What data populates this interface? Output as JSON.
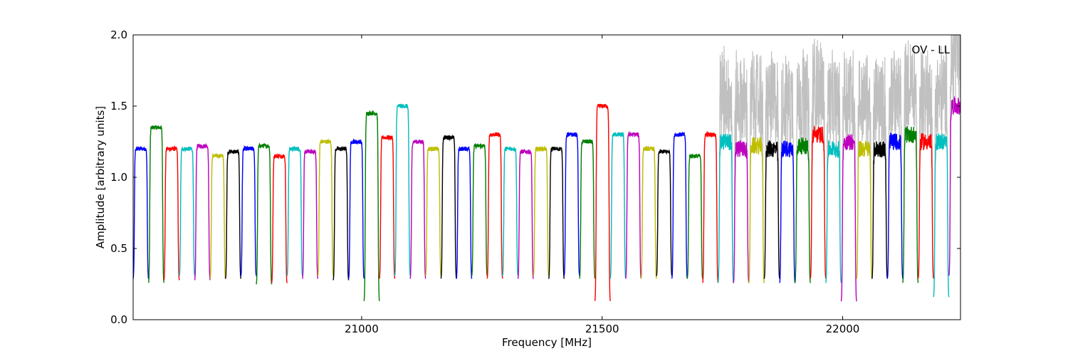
{
  "chart_data": {
    "type": "line",
    "annotation": "OV - LL",
    "xlabel": "Frequency [MHz]",
    "ylabel": "Amplitude [arbitrary units]",
    "xlim": [
      20525,
      22245
    ],
    "ylim": [
      0.0,
      2.0
    ],
    "xticks": [
      21000,
      21500,
      22000
    ],
    "xtick_labels": [
      "21000",
      "21500",
      "22000"
    ],
    "yticks": [
      0.0,
      0.5,
      1.0,
      1.5,
      2.0
    ],
    "ytick_labels": [
      "0.0",
      "0.5",
      "1.0",
      "1.5",
      "2.0"
    ],
    "grid": false,
    "legend": "none",
    "band_width_mhz": 32,
    "band_starts_mhz": [
      20525,
      20557,
      20589,
      20621,
      20653,
      20685,
      20717,
      20749,
      20781,
      20813,
      20845,
      20877,
      20909,
      20941,
      20973,
      21005,
      21037,
      21069,
      21101,
      21133,
      21165,
      21197,
      21229,
      21261,
      21293,
      21325,
      21357,
      21389,
      21421,
      21453,
      21485,
      21517,
      21549,
      21581,
      21613,
      21645,
      21677,
      21709,
      21741,
      21773,
      21805,
      21837,
      21869,
      21901,
      21933,
      21965,
      21997,
      22029,
      22061,
      22093,
      22125,
      22157,
      22189,
      22221
    ],
    "band_levels": [
      1.2,
      1.35,
      1.2,
      1.2,
      1.22,
      1.15,
      1.18,
      1.2,
      1.22,
      1.15,
      1.2,
      1.18,
      1.25,
      1.2,
      1.25,
      1.45,
      1.28,
      1.5,
      1.25,
      1.2,
      1.28,
      1.2,
      1.22,
      1.3,
      1.2,
      1.18,
      1.2,
      1.2,
      1.3,
      1.25,
      1.5,
      1.3,
      1.3,
      1.2,
      1.18,
      1.3,
      1.15,
      1.3,
      1.25,
      1.2,
      1.22,
      1.2,
      1.2,
      1.22,
      1.3,
      1.2,
      1.25,
      1.2,
      1.2,
      1.25,
      1.3,
      1.25,
      1.25,
      1.5
    ],
    "band_minima": [
      0.28,
      0.25,
      0.27,
      0.3,
      0.27,
      0.28,
      0.28,
      0.3,
      0.24,
      0.25,
      0.3,
      0.28,
      0.3,
      0.27,
      0.28,
      0.12,
      0.28,
      0.3,
      0.28,
      0.3,
      0.28,
      0.28,
      0.3,
      0.28,
      0.3,
      0.28,
      0.3,
      0.28,
      0.3,
      0.28,
      0.12,
      0.28,
      0.28,
      0.28,
      0.3,
      0.28,
      0.28,
      0.25,
      0.25,
      0.25,
      0.25,
      0.28,
      0.25,
      0.25,
      0.28,
      0.25,
      0.12,
      0.28,
      0.28,
      0.28,
      0.25,
      0.28,
      0.15,
      0.3
    ],
    "series_colors": [
      "#0000ff",
      "#008000",
      "#ff0000",
      "#00bfbf",
      "#bf00bf",
      "#bfbf00",
      "#000000"
    ],
    "raw_color": "#c0c0c0",
    "noisy_region_start_mhz": 21730
  }
}
